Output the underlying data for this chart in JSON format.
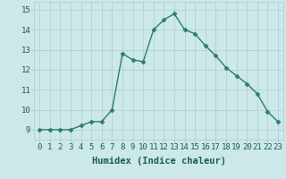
{
  "x": [
    0,
    1,
    2,
    3,
    4,
    5,
    6,
    7,
    8,
    9,
    10,
    11,
    12,
    13,
    14,
    15,
    16,
    17,
    18,
    19,
    20,
    21,
    22,
    23
  ],
  "y": [
    9.0,
    9.0,
    9.0,
    9.0,
    9.2,
    9.4,
    9.4,
    10.0,
    12.8,
    12.5,
    12.4,
    14.0,
    14.5,
    14.8,
    14.0,
    13.8,
    13.2,
    12.7,
    12.1,
    11.7,
    11.3,
    10.8,
    9.9,
    9.4
  ],
  "line_color": "#2e7d6e",
  "marker": "D",
  "markersize": 2.5,
  "linewidth": 1.0,
  "bg_color": "#cce8e8",
  "grid_color": "#aacfcf",
  "xlabel": "Humidex (Indice chaleur)",
  "xlabel_fontsize": 7.5,
  "tick_fontsize": 6.5,
  "ylim": [
    8.5,
    15.4
  ],
  "yticks": [
    9,
    10,
    11,
    12,
    13,
    14,
    15
  ],
  "xticks": [
    0,
    1,
    2,
    3,
    4,
    5,
    6,
    7,
    8,
    9,
    10,
    11,
    12,
    13,
    14,
    15,
    16,
    17,
    18,
    19,
    20,
    21,
    22,
    23
  ],
  "xlim": [
    -0.5,
    23.5
  ]
}
